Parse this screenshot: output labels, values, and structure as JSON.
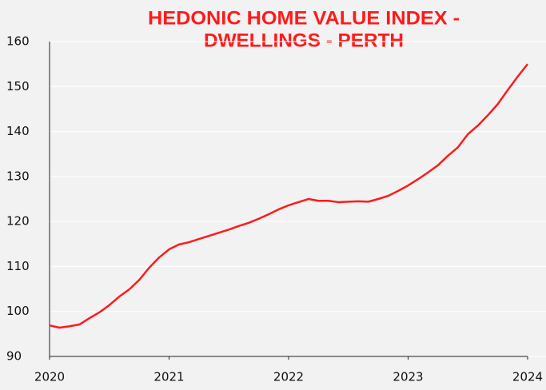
{
  "chart_data": {
    "type": "line",
    "title": [
      "HEDONIC HOME VALUE INDEX -",
      "DWELLINGS - PERTH"
    ],
    "x": [
      2020,
      2020.083,
      2020.167,
      2020.25,
      2020.333,
      2020.417,
      2020.5,
      2020.583,
      2020.667,
      2020.75,
      2020.833,
      2020.917,
      2021,
      2021.083,
      2021.167,
      2021.25,
      2021.333,
      2021.417,
      2021.5,
      2021.583,
      2021.667,
      2021.75,
      2021.833,
      2021.917,
      2022,
      2022.083,
      2022.167,
      2022.25,
      2022.333,
      2022.417,
      2022.5,
      2022.583,
      2022.667,
      2022.75,
      2022.833,
      2022.917,
      2023,
      2023.083,
      2023.167,
      2023.25,
      2023.333,
      2023.417,
      2023.5,
      2023.583,
      2023.667,
      2023.75,
      2023.833,
      2023.917,
      2024
    ],
    "series": [
      {
        "name": "Perth",
        "color": "#ff1a1a",
        "values": [
          96.9,
          96.4,
          96.7,
          97.1,
          98.5,
          99.8,
          101.4,
          103.3,
          104.9,
          107.0,
          109.7,
          112.0,
          113.8,
          114.9,
          115.4,
          116.1,
          116.8,
          117.5,
          118.2,
          119.0,
          119.7,
          120.6,
          121.6,
          122.7,
          123.6,
          124.3,
          125.0,
          124.6,
          124.6,
          124.3,
          124.4,
          124.5,
          124.4,
          125.0,
          125.7,
          126.8,
          128.0,
          129.4,
          130.9,
          132.5,
          134.6,
          136.5,
          139.4,
          141.3,
          143.6,
          146.1,
          149.2,
          152.2,
          155.0
        ]
      }
    ],
    "xlim": [
      2020,
      2024
    ],
    "xticks": [
      2020,
      2021,
      2022,
      2023,
      2024
    ],
    "ylim": [
      90,
      160
    ],
    "yticks": [
      90,
      100,
      110,
      120,
      130,
      140,
      150,
      160
    ],
    "grid": true
  }
}
